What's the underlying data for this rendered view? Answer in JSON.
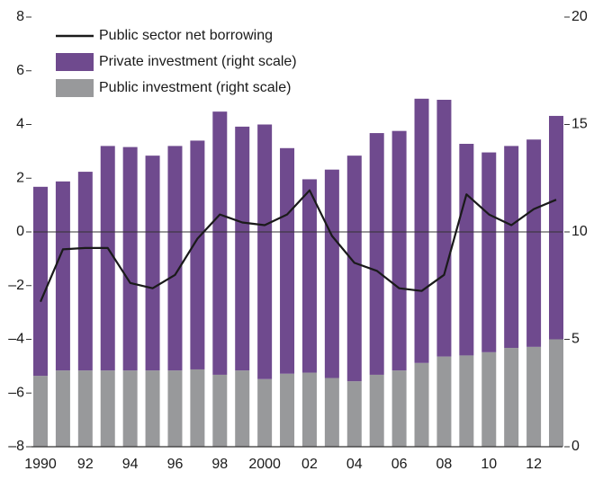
{
  "chart_data": {
    "type": "bar",
    "categories": [
      "1990",
      null,
      "92",
      null,
      "94",
      null,
      "96",
      null,
      "98",
      null,
      "2000",
      null,
      "02",
      null,
      "04",
      null,
      "06",
      null,
      "08",
      null,
      "10",
      null,
      "12",
      null
    ],
    "series": [
      {
        "name": "Public sector net borrowing",
        "type": "line",
        "axis": "y",
        "color": "#1a1a1a",
        "values": [
          -2.6,
          -0.65,
          -0.6,
          -0.6,
          -1.9,
          -2.1,
          -1.6,
          -0.25,
          0.65,
          0.35,
          0.25,
          0.65,
          1.55,
          -0.15,
          -1.15,
          -1.45,
          -2.1,
          -2.2,
          -1.6,
          1.4,
          0.65,
          0.25,
          0.85,
          1.2
        ]
      },
      {
        "name": "Private investment (right scale)",
        "type": "bar",
        "axis": "y2",
        "color": "#6f4a8e",
        "values": [
          8.8,
          8.8,
          9.25,
          10.45,
          10.4,
          10.0,
          10.45,
          10.65,
          12.25,
          11.35,
          11.85,
          10.5,
          9.0,
          9.7,
          10.5,
          11.25,
          11.15,
          12.3,
          11.95,
          9.85,
          9.3,
          9.4,
          9.65,
          10.4
        ]
      },
      {
        "name": "Public investment (right scale)",
        "type": "bar",
        "axis": "y2",
        "color": "#98999b",
        "values": [
          3.3,
          3.55,
          3.55,
          3.55,
          3.55,
          3.55,
          3.55,
          3.6,
          3.35,
          3.55,
          3.15,
          3.4,
          3.45,
          3.2,
          3.05,
          3.35,
          3.55,
          3.9,
          4.2,
          4.25,
          4.4,
          4.6,
          4.65,
          5.0
        ]
      }
    ],
    "stacked": true,
    "ylim": [
      -8,
      8
    ],
    "yticks": [
      {
        "value": -8,
        "label": "–8"
      },
      {
        "value": -6,
        "label": "–6"
      },
      {
        "value": -4,
        "label": "–4"
      },
      {
        "value": -2,
        "label": "–2"
      },
      0,
      2,
      4,
      6,
      8
    ],
    "y2lim": [
      0,
      20
    ],
    "y2ticks": [
      0,
      5,
      10,
      15,
      20
    ]
  }
}
